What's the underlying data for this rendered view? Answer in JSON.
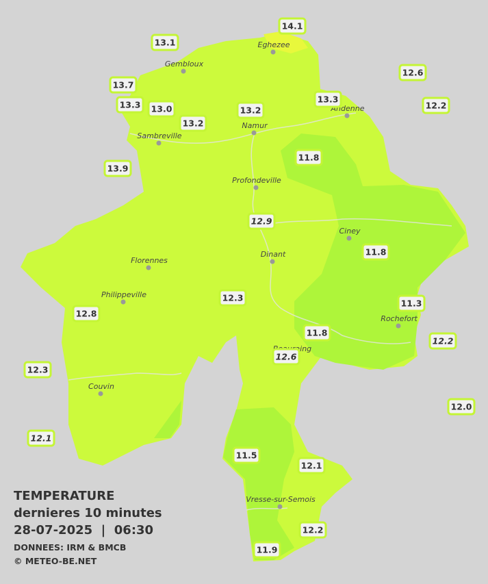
{
  "legend": {
    "title": "TEMPERATURE",
    "subtitle": "dernieres 10 minutes",
    "datetime": "28-07-2025  |  06:30",
    "source": "DONNEES: IRM & BMCB",
    "copyright": "© METEO-BE.NET"
  },
  "towns": [
    "Eghezee",
    "Gembloux",
    "Andenne",
    "Namur",
    "Sambreville",
    "Profondeville",
    "Ciney",
    "Dinant",
    "Florennes",
    "Philippeville",
    "Rochefort",
    "Beauraing",
    "Couvin",
    "Vresse-sur-Semois"
  ],
  "stations": [
    {
      "label": "14.1",
      "italic": false
    },
    {
      "label": "13.1",
      "italic": false
    },
    {
      "label": "12.6",
      "italic": false
    },
    {
      "label": "13.7",
      "italic": false
    },
    {
      "label": "13.3",
      "italic": false
    },
    {
      "label": "13.0",
      "italic": false
    },
    {
      "label": "13.2",
      "italic": false
    },
    {
      "label": "13.3",
      "italic": false
    },
    {
      "label": "12.2",
      "italic": false
    },
    {
      "label": "13.2",
      "italic": false
    },
    {
      "label": "13.9",
      "italic": false
    },
    {
      "label": "11.8",
      "italic": false
    },
    {
      "label": "12.9",
      "italic": true
    },
    {
      "label": "11.8",
      "italic": false
    },
    {
      "label": "12.3",
      "italic": false
    },
    {
      "label": "11.3",
      "italic": false
    },
    {
      "label": "12.8",
      "italic": false
    },
    {
      "label": "11.8",
      "italic": false
    },
    {
      "label": "12.2",
      "italic": true
    },
    {
      "label": "12.6",
      "italic": true
    },
    {
      "label": "12.3",
      "italic": false
    },
    {
      "label": "12.0",
      "italic": false
    },
    {
      "label": "12.1",
      "italic": true
    },
    {
      "label": "11.5",
      "italic": false
    },
    {
      "label": "12.1",
      "italic": false
    },
    {
      "label": "12.2",
      "italic": false
    },
    {
      "label": "11.9",
      "italic": false
    }
  ]
}
